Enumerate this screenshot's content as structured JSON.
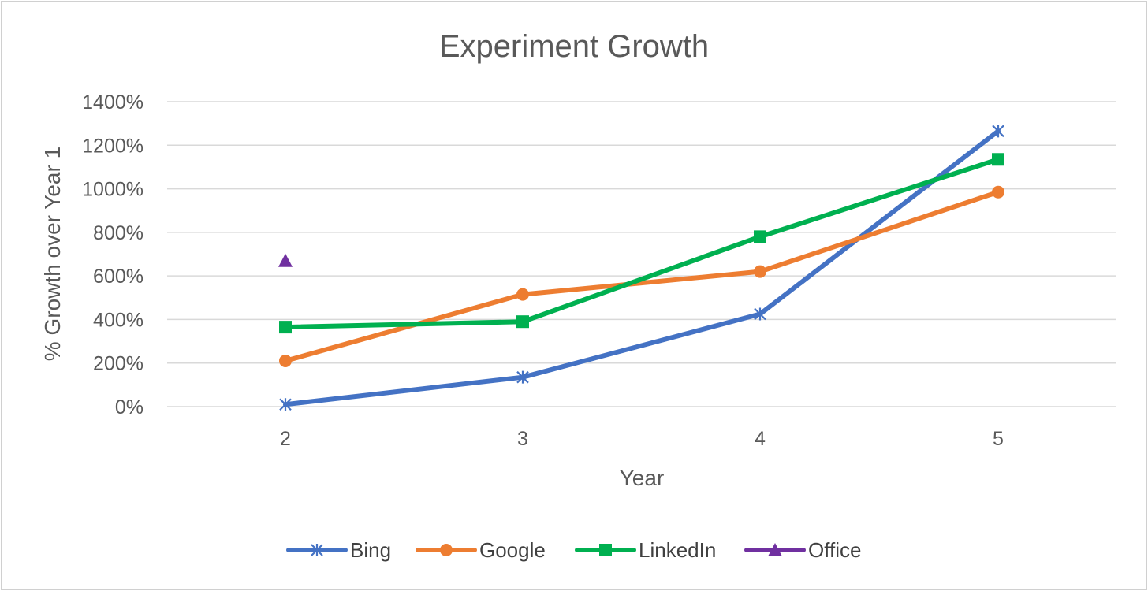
{
  "chart_data": {
    "type": "line",
    "title": "Experiment Growth",
    "xlabel": "Year",
    "ylabel": "% Growth over Year 1",
    "categories": [
      "2",
      "3",
      "4",
      "5"
    ],
    "ylim": [
      0,
      1400
    ],
    "yticks": [
      0,
      200,
      400,
      600,
      800,
      1000,
      1200,
      1400
    ],
    "ytick_labels": [
      "0%",
      "200%",
      "400%",
      "600%",
      "800%",
      "1000%",
      "1200%",
      "1400%"
    ],
    "grid": true,
    "legend_position": "bottom",
    "series": [
      {
        "name": "Bing",
        "color": "#4472c4",
        "marker": "asterisk",
        "values": [
          10,
          135,
          425,
          1265
        ]
      },
      {
        "name": "Google",
        "color": "#ed7d31",
        "marker": "circle",
        "values": [
          210,
          515,
          620,
          985
        ]
      },
      {
        "name": "LinkedIn",
        "color": "#00b050",
        "marker": "square",
        "values": [
          365,
          390,
          780,
          1135
        ]
      },
      {
        "name": "Office",
        "color": "#7030a0",
        "marker": "triangle",
        "values": [
          670,
          null,
          null,
          null
        ]
      }
    ]
  }
}
